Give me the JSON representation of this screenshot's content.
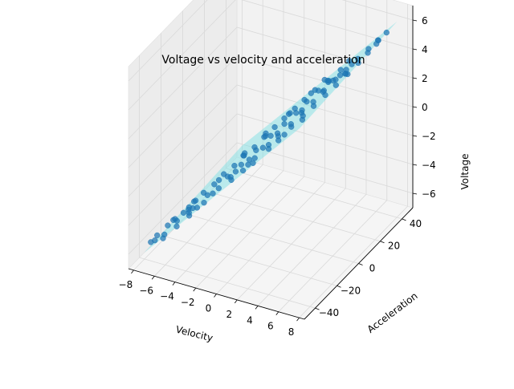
{
  "chart_data": {
    "type": "scatter",
    "projection": "3d",
    "title": "Voltage vs velocity and acceleration",
    "xlabel": "Velocity",
    "ylabel": "Acceleration",
    "zlabel": "Voltage",
    "x_ticks": [
      -8,
      -6,
      -4,
      -2,
      0,
      2,
      4,
      6,
      8
    ],
    "y_ticks": [
      -40,
      -20,
      0,
      20,
      40
    ],
    "z_ticks": [
      -6,
      -4,
      -2,
      0,
      2,
      4,
      6
    ],
    "xlim": [
      -8.5,
      8.5
    ],
    "ylim": [
      -50,
      50
    ],
    "zlim": [
      -7,
      7
    ],
    "grid": true,
    "colors": {
      "points": "#1f77b4",
      "plane": "#7fe0e3",
      "pane": "#f2f2f2",
      "grid": "#d9d9d9"
    },
    "plane": {
      "a": 0.78,
      "b": 0.005,
      "c": 0.0
    },
    "points": [
      [
        -7.6,
        -38,
        -5.9
      ],
      [
        -7.3,
        -35,
        -5.6
      ],
      [
        -7.0,
        -40,
        -5.5
      ],
      [
        -6.8,
        -30,
        -5.2
      ],
      [
        -6.5,
        -36,
        -5.3
      ],
      [
        -6.3,
        -28,
        -4.8
      ],
      [
        -6.0,
        -42,
        -5.0
      ],
      [
        -5.8,
        -25,
        -4.5
      ],
      [
        -5.6,
        -33,
        -4.4
      ],
      [
        -5.3,
        -20,
        -4.0
      ],
      [
        -5.1,
        -38,
        -4.3
      ],
      [
        -4.9,
        -15,
        -3.7
      ],
      [
        -4.7,
        -27,
        -3.8
      ],
      [
        -4.4,
        -10,
        -3.4
      ],
      [
        -4.2,
        -35,
        -3.6
      ],
      [
        -4.0,
        -5,
        -3.0
      ],
      [
        -3.8,
        -22,
        -3.1
      ],
      [
        -3.5,
        0,
        -2.7
      ],
      [
        -3.3,
        -30,
        -2.9
      ],
      [
        -3.1,
        5,
        -2.3
      ],
      [
        -2.9,
        -12,
        -2.4
      ],
      [
        -2.6,
        10,
        -2.0
      ],
      [
        -2.4,
        -25,
        -2.1
      ],
      [
        -2.2,
        15,
        -1.6
      ],
      [
        -2.0,
        -8,
        -1.7
      ],
      [
        -1.7,
        20,
        -1.2
      ],
      [
        -1.5,
        -18,
        -1.3
      ],
      [
        -1.3,
        25,
        -0.9
      ],
      [
        -1.1,
        -3,
        -0.9
      ],
      [
        -0.8,
        30,
        -0.5
      ],
      [
        -0.6,
        -14,
        -0.6
      ],
      [
        -0.4,
        35,
        -0.2
      ],
      [
        -0.2,
        2,
        -0.1
      ],
      [
        0.1,
        40,
        0.2
      ],
      [
        0.3,
        -10,
        0.1
      ],
      [
        0.5,
        45,
        0.6
      ],
      [
        0.7,
        6,
        0.6
      ],
      [
        1.0,
        -35,
        0.6
      ],
      [
        1.2,
        12,
        1.0
      ],
      [
        1.4,
        -28,
        1.0
      ],
      [
        1.6,
        18,
        1.4
      ],
      [
        1.9,
        -20,
        1.4
      ],
      [
        2.1,
        24,
        1.8
      ],
      [
        2.3,
        -15,
        1.7
      ],
      [
        2.5,
        30,
        2.1
      ],
      [
        2.8,
        -8,
        2.1
      ],
      [
        3.0,
        36,
        2.5
      ],
      [
        3.2,
        -2,
        2.5
      ],
      [
        3.4,
        40,
        2.9
      ],
      [
        3.7,
        4,
        2.9
      ],
      [
        3.9,
        -30,
        2.9
      ],
      [
        4.1,
        10,
        3.3
      ],
      [
        4.3,
        -22,
        3.3
      ],
      [
        4.6,
        16,
        3.7
      ],
      [
        4.8,
        -16,
        3.7
      ],
      [
        5.0,
        22,
        4.0
      ],
      [
        5.2,
        -10,
        4.0
      ],
      [
        5.5,
        28,
        4.4
      ],
      [
        5.7,
        -4,
        4.4
      ],
      [
        5.9,
        34,
        4.7
      ],
      [
        6.1,
        2,
        4.7
      ],
      [
        6.4,
        38,
        5.1
      ],
      [
        6.6,
        8,
        5.1
      ],
      [
        6.8,
        42,
        5.4
      ],
      [
        7.0,
        14,
        5.5
      ],
      [
        7.3,
        20,
        5.8
      ],
      [
        7.5,
        26,
        6.0
      ],
      [
        -6.2,
        -10,
        -4.9
      ],
      [
        -5.0,
        0,
        -4.0
      ],
      [
        -3.9,
        12,
        -3.0
      ],
      [
        -2.8,
        22,
        -2.2
      ],
      [
        -1.6,
        32,
        -1.2
      ],
      [
        -0.5,
        42,
        -0.3
      ],
      [
        0.6,
        -42,
        0.4
      ],
      [
        1.8,
        -38,
        1.4
      ],
      [
        2.9,
        -44,
        2.2
      ],
      [
        4.0,
        -40,
        3.1
      ],
      [
        5.1,
        -36,
        4.0
      ],
      [
        6.2,
        -30,
        4.8
      ],
      [
        -4.6,
        20,
        -3.6
      ],
      [
        -3.4,
        28,
        -2.6
      ],
      [
        -2.1,
        38,
        -1.7
      ],
      [
        0.9,
        44,
        0.7
      ],
      [
        2.0,
        34,
        1.6
      ],
      [
        3.1,
        28,
        2.4
      ],
      [
        4.2,
        24,
        3.3
      ],
      [
        5.3,
        18,
        4.1
      ],
      [
        6.0,
        12,
        4.7
      ],
      [
        -7.1,
        -22,
        -5.5
      ],
      [
        -6.0,
        -18,
        -4.7
      ],
      [
        -4.8,
        -30,
        -3.7
      ],
      [
        -3.7,
        -40,
        -2.9
      ],
      [
        -2.5,
        -44,
        -2.0
      ],
      [
        -1.4,
        -40,
        -1.1
      ],
      [
        -0.3,
        -34,
        -0.2
      ],
      [
        1.3,
        -6,
        1.0
      ],
      [
        2.4,
        6,
        1.9
      ],
      [
        3.6,
        14,
        2.8
      ],
      [
        4.7,
        30,
        3.7
      ],
      [
        5.8,
        44,
        4.5
      ]
    ]
  }
}
